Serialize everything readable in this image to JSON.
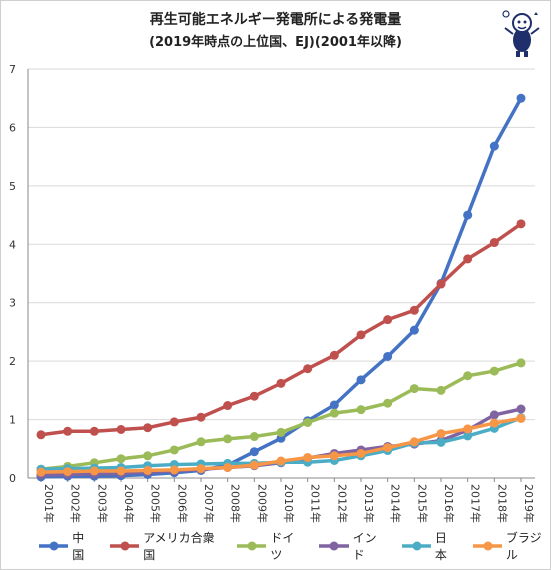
{
  "header": {
    "title": "再生可能エネルギー発電所による発電量",
    "subtitle": "(2019年時点の上位国、EJ)(2001年以降)"
  },
  "chart_data": {
    "type": "line",
    "categories": [
      "2001年",
      "2002年",
      "2003年",
      "2004年",
      "2005年",
      "2006年",
      "2007年",
      "2008年",
      "2009年",
      "2010年",
      "2011年",
      "2012年",
      "2013年",
      "2014年",
      "2015年",
      "2016年",
      "2017年",
      "2018年",
      "2019年"
    ],
    "ylim": [
      0,
      7
    ],
    "yticks": [
      0,
      1,
      2,
      3,
      4,
      5,
      6,
      7
    ],
    "grid": true,
    "legend_position": "bottom",
    "series": [
      {
        "name": "中国",
        "color": "#4472c4",
        "values": [
          0.02,
          0.03,
          0.03,
          0.04,
          0.06,
          0.09,
          0.13,
          0.22,
          0.45,
          0.68,
          0.98,
          1.25,
          1.68,
          2.08,
          2.53,
          3.33,
          4.5,
          5.68,
          6.5
        ]
      },
      {
        "name": "アメリカ合衆国",
        "color": "#c0504d",
        "values": [
          0.74,
          0.8,
          0.8,
          0.83,
          0.86,
          0.96,
          1.04,
          1.24,
          1.4,
          1.62,
          1.87,
          2.1,
          2.45,
          2.71,
          2.87,
          3.32,
          3.75,
          4.03,
          4.35
        ]
      },
      {
        "name": "ドイツ",
        "color": "#9bbb59",
        "values": [
          0.15,
          0.2,
          0.26,
          0.33,
          0.38,
          0.48,
          0.62,
          0.67,
          0.71,
          0.78,
          0.95,
          1.11,
          1.17,
          1.28,
          1.53,
          1.5,
          1.75,
          1.83,
          1.97
        ]
      },
      {
        "name": "インド",
        "color": "#8064a2",
        "values": [
          0.05,
          0.06,
          0.07,
          0.08,
          0.1,
          0.12,
          0.15,
          0.18,
          0.21,
          0.26,
          0.34,
          0.42,
          0.48,
          0.54,
          0.58,
          0.64,
          0.82,
          1.08,
          1.18
        ]
      },
      {
        "name": "日本",
        "color": "#4bacc6",
        "values": [
          0.15,
          0.16,
          0.17,
          0.18,
          0.21,
          0.23,
          0.24,
          0.25,
          0.25,
          0.27,
          0.27,
          0.3,
          0.38,
          0.47,
          0.6,
          0.61,
          0.72,
          0.85,
          1.03
        ]
      },
      {
        "name": "ブラジル",
        "color": "#f79646",
        "values": [
          0.1,
          0.11,
          0.12,
          0.12,
          0.13,
          0.14,
          0.16,
          0.18,
          0.22,
          0.29,
          0.35,
          0.38,
          0.42,
          0.52,
          0.62,
          0.76,
          0.84,
          0.94,
          1.02
        ]
      }
    ]
  }
}
